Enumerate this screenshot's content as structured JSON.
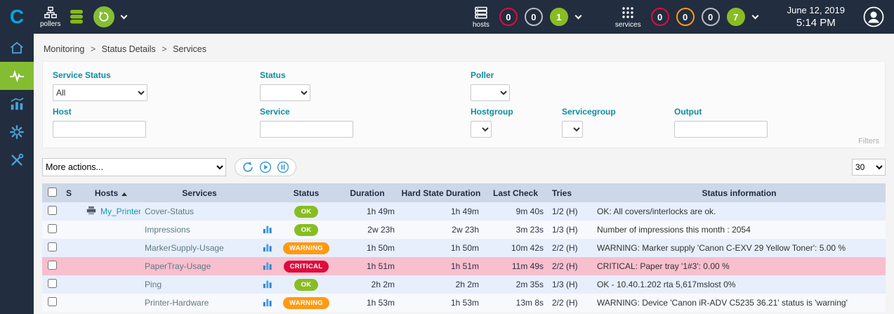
{
  "colors": {
    "topbar-bg": "#222d40",
    "brand-blue": "#00a8e1",
    "active-green": "#84bd32",
    "ok": "#87bd23",
    "warning": "#ff9a13",
    "critical": "#e00b3d",
    "teal-label": "#0c8e9e",
    "link-teal": "#1698aa",
    "header-row-bg": "#ccd7e8",
    "row-odd": "#e7effc",
    "row-even": "#f7f9fd",
    "row-critical": "#f8bfce"
  },
  "topbar": {
    "pollers_label": "pollers",
    "hosts_label": "hosts",
    "services_label": "services",
    "date": "June 12, 2019",
    "time": "5:14 PM",
    "hosts_badges": [
      {
        "value": "0",
        "color": "#e00b3d",
        "filled": false
      },
      {
        "value": "0",
        "color": "#babdc2",
        "filled": false
      },
      {
        "value": "1",
        "color": "#87bd23",
        "filled": true
      }
    ],
    "services_badges": [
      {
        "value": "0",
        "color": "#e00b3d",
        "filled": false
      },
      {
        "value": "0",
        "color": "#ff9a13",
        "filled": false
      },
      {
        "value": "0",
        "color": "#babdc2",
        "filled": false
      },
      {
        "value": "7",
        "color": "#87bd23",
        "filled": true
      }
    ]
  },
  "sidebar": {
    "icons": [
      "home-icon",
      "monitoring-heartbeat-icon",
      "reporting-chart-icon",
      "configuration-gear-icon",
      "administration-tools-icon"
    ],
    "active_item": "monitoring"
  },
  "breadcrumb": {
    "items": [
      "Monitoring",
      "Status Details",
      "Services"
    ],
    "separator": ">"
  },
  "filters": {
    "service_status": {
      "label": "Service Status",
      "value": "All"
    },
    "status": {
      "label": "Status",
      "value": ""
    },
    "poller": {
      "label": "Poller",
      "value": ""
    },
    "host": {
      "label": "Host",
      "value": ""
    },
    "service": {
      "label": "Service",
      "value": ""
    },
    "hostgroup": {
      "label": "Hostgroup",
      "value": ""
    },
    "servicegroup": {
      "label": "Servicegroup",
      "value": ""
    },
    "output": {
      "label": "Output",
      "value": ""
    },
    "filters_caption": "Filters"
  },
  "toolbar": {
    "more_actions": "More actions...",
    "icons": [
      "refresh-icon",
      "play-icon",
      "pause-icon"
    ],
    "page_size": "30"
  },
  "table": {
    "headers": {
      "s": "S",
      "hosts": "Hosts",
      "services": "Services",
      "status": "Status",
      "duration": "Duration",
      "hard_state_duration": "Hard State Duration",
      "last_check": "Last Check",
      "tries": "Tries",
      "status_information": "Status information"
    },
    "rows": [
      {
        "host": "My_Printer",
        "host_icon": "printer-icon",
        "service": "Cover-Status",
        "chart_icon": false,
        "status": "OK",
        "duration": "1h 49m",
        "hard_state_duration": "1h 49m",
        "last_check": "9m 40s",
        "tries": "1/2 (H)",
        "info": "OK: All covers/interlocks are ok.",
        "highlight": ""
      },
      {
        "host": "",
        "host_icon": "",
        "service": "Impressions",
        "chart_icon": true,
        "status": "OK",
        "duration": "2w 23h",
        "hard_state_duration": "2w 23h",
        "last_check": "3m 23s",
        "tries": "1/3 (H)",
        "info": "Number of impressions this month : 2054",
        "highlight": ""
      },
      {
        "host": "",
        "host_icon": "",
        "service": "MarkerSupply-Usage",
        "chart_icon": true,
        "status": "WARNING",
        "duration": "1h 50m",
        "hard_state_duration": "1h 50m",
        "last_check": "10m 42s",
        "tries": "2/2 (H)",
        "info": "WARNING: Marker supply 'Canon C-EXV 29 Yellow Toner': 5.00 %",
        "highlight": ""
      },
      {
        "host": "",
        "host_icon": "",
        "service": "PaperTray-Usage",
        "chart_icon": true,
        "status": "CRITICAL",
        "duration": "1h 51m",
        "hard_state_duration": "1h 51m",
        "last_check": "11m 49s",
        "tries": "2/2 (H)",
        "info": "CRITICAL: Paper tray '1#3': 0.00 %",
        "highlight": "critical"
      },
      {
        "host": "",
        "host_icon": "",
        "service": "Ping",
        "chart_icon": true,
        "status": "OK",
        "duration": "2h 2m",
        "hard_state_duration": "2h 2m",
        "last_check": "2m 35s",
        "tries": "1/3 (H)",
        "info": "OK - 10.40.1.202 rta 5,617mslost 0%",
        "highlight": ""
      },
      {
        "host": "",
        "host_icon": "",
        "service": "Printer-Hardware",
        "chart_icon": true,
        "status": "WARNING",
        "duration": "1h 53m",
        "hard_state_duration": "1h 53m",
        "last_check": "13m 8s",
        "tries": "2/2 (H)",
        "info": "WARNING: Device 'Canon iR-ADV C5235 36.21' status is 'warning'",
        "highlight": ""
      }
    ]
  }
}
